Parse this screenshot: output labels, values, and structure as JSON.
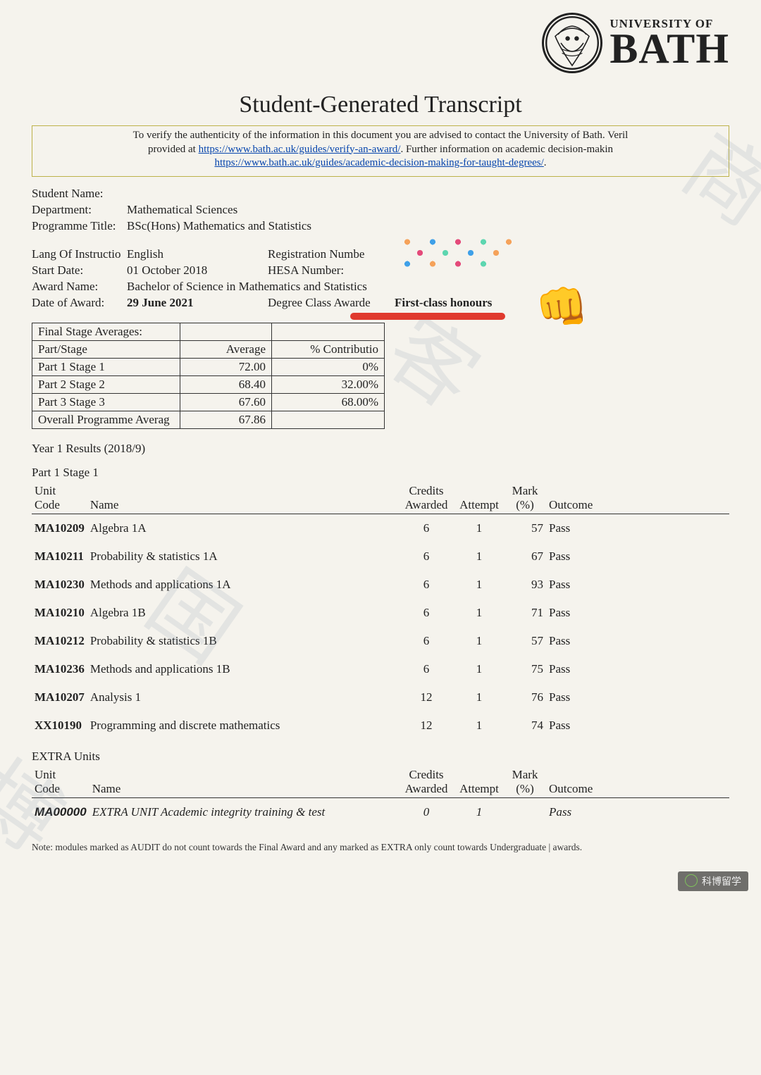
{
  "header": {
    "uni_top": "UNIVERSITY OF",
    "uni_name": "BATH",
    "title": "Student-Generated Transcript"
  },
  "verify": {
    "line1_a": "To verify the authenticity of the information in this document you are advised to contact the University of Bath. Veril",
    "line2_a": "provided at ",
    "link1": "https://www.bath.ac.uk/guides/verify-an-award/",
    "line2_b": ". Further information on academic decision-makin",
    "link2": "https://www.bath.ac.uk/guides/academic-decision-making-for-taught-degrees/",
    "line3_b": "."
  },
  "student": {
    "name_lbl": "Student Name:",
    "name_val": "",
    "dept_lbl": "Department:",
    "dept_val": "Mathematical Sciences",
    "prog_lbl": "Programme Title:",
    "prog_val": "BSc(Hons) Mathematics and Statistics",
    "lang_lbl": "Lang Of Instructio",
    "lang_val": "English",
    "regno_lbl": "Registration Numbe",
    "start_lbl": "Start Date:",
    "start_val": "01 October 2018",
    "hesa_lbl": "HESA Number:",
    "award_lbl": "Award Name:",
    "award_val": "Bachelor of Science in Mathematics and Statistics",
    "doa_lbl": "Date of Award:",
    "doa_val": "29 June 2021",
    "class_lbl": "Degree Class Awarde",
    "class_val": "First-class honours"
  },
  "averages": {
    "heading": "Final Stage Averages:",
    "col_part": "Part/Stage",
    "col_avg": "Average",
    "col_contrib": "% Contributio",
    "rows": [
      {
        "stage": "Part 1 Stage 1",
        "avg": "72.00",
        "contrib": "0%"
      },
      {
        "stage": "Part 2 Stage 2",
        "avg": "68.40",
        "contrib": "32.00%"
      },
      {
        "stage": "Part 3 Stage 3",
        "avg": "67.60",
        "contrib": "68.00%"
      }
    ],
    "overall_lbl": "Overall Programme Averag",
    "overall_val": "67.86",
    "col_widths": [
      "210px",
      "130px",
      "160px"
    ]
  },
  "year1": {
    "heading": "Year 1 Results (2018/9)",
    "stage": "Part 1 Stage 1",
    "cols": {
      "code1": "Unit",
      "code2": "Code",
      "name": "Name",
      "cred1": "Credits",
      "cred2": "Awarded",
      "att": "Attempt",
      "mark1": "Mark",
      "mark2": "(%)",
      "out": "Outcome"
    },
    "units": [
      {
        "code": "MA10209",
        "name": "Algebra 1A",
        "credits": "6",
        "attempt": "1",
        "mark": "57",
        "outcome": "Pass"
      },
      {
        "code": "MA10211",
        "name": "Probability & statistics 1A",
        "credits": "6",
        "attempt": "1",
        "mark": "67",
        "outcome": "Pass"
      },
      {
        "code": "MA10230",
        "name": "Methods and applications 1A",
        "credits": "6",
        "attempt": "1",
        "mark": "93",
        "outcome": "Pass"
      },
      {
        "code": "MA10210",
        "name": "Algebra 1B",
        "credits": "6",
        "attempt": "1",
        "mark": "71",
        "outcome": "Pass"
      },
      {
        "code": "MA10212",
        "name": "Probability & statistics 1B",
        "credits": "6",
        "attempt": "1",
        "mark": "57",
        "outcome": "Pass"
      },
      {
        "code": "MA10236",
        "name": "Methods and applications 1B",
        "credits": "6",
        "attempt": "1",
        "mark": "75",
        "outcome": "Pass"
      },
      {
        "code": "MA10207",
        "name": "Analysis 1",
        "credits": "12",
        "attempt": "1",
        "mark": "76",
        "outcome": "Pass"
      },
      {
        "code": "XX10190",
        "name": "Programming and discrete mathematics",
        "credits": "12",
        "attempt": "1",
        "mark": "74",
        "outcome": "Pass"
      }
    ]
  },
  "extra": {
    "heading": "EXTRA Units",
    "units": [
      {
        "code": "MA00000",
        "name": "EXTRA UNIT Academic integrity training & test",
        "credits": "0",
        "attempt": "1",
        "mark": "",
        "outcome": "Pass"
      }
    ]
  },
  "note": "Note: modules marked as AUDIT do not count towards the Final Award and any marked as EXTRA only count towards Undergraduate | awards.",
  "credit": "科博留学",
  "colors": {
    "page_bg": "#f5f3ed",
    "border_box": "#bdb24a",
    "text": "#222222",
    "link": "#0645ad",
    "underline": "#e03a2e"
  }
}
